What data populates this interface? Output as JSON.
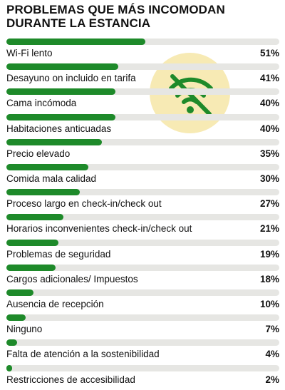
{
  "title": "PROBLEMAS QUE MÁS INCOMODAN DURANTE LA ESTANCIA",
  "badge_icon": "wifi-off-icon",
  "colors": {
    "bar": "#1e8a2a",
    "track": "#e6e6e3",
    "badge": "#f7eab4",
    "icon": "#1e8a2a"
  },
  "chart_data": {
    "type": "bar",
    "orientation": "horizontal",
    "xlim": [
      0,
      100
    ],
    "categories": [
      "Wi-Fi lento",
      "Desayuno on incluido en tarifa",
      "Cama incómoda",
      "Habitaciones anticuadas",
      "Precio elevado",
      "Comida mala calidad",
      "Proceso largo en check-in/check out",
      "Horarios inconvenientes check-in/check out",
      "Problemas de seguridad",
      "Cargos adicionales/ Impuestos",
      "Ausencia de recepción",
      "Ninguno",
      "Falta de atención a la sostenibilidad",
      "Restricciones de accesibilidad"
    ],
    "values": [
      51,
      41,
      40,
      40,
      35,
      30,
      27,
      21,
      19,
      18,
      10,
      7,
      4,
      2
    ],
    "value_labels": [
      "51%",
      "41%",
      "40%",
      "40%",
      "35%",
      "30%",
      "27%",
      "21%",
      "19%",
      "18%",
      "10%",
      "7%",
      "4%",
      "2%"
    ]
  }
}
